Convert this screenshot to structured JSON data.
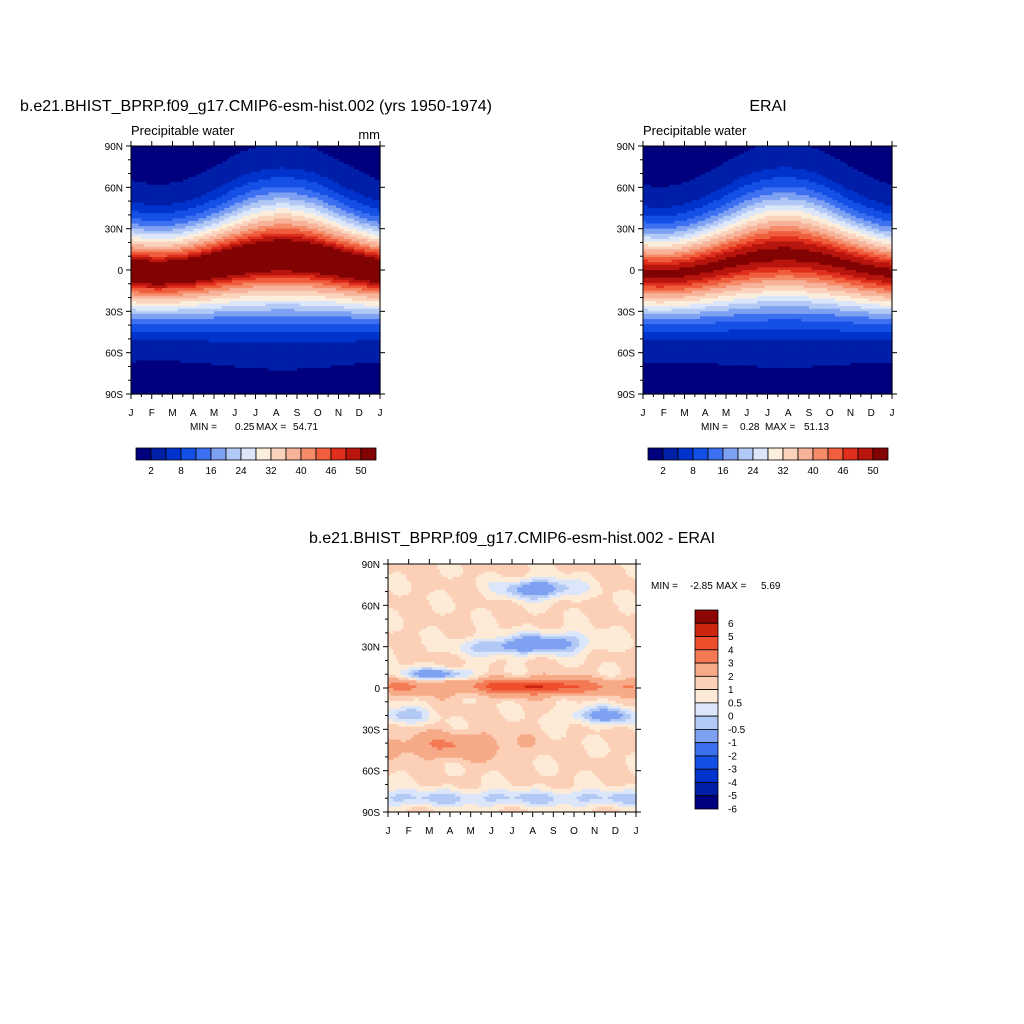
{
  "colors": {
    "pw_scale": [
      "#00007f",
      "#001fa8",
      "#0033cc",
      "#1450e6",
      "#3c70f0",
      "#7ea1f2",
      "#b3c9f5",
      "#dbe6fa",
      "#fbeedd",
      "#fbd3bc",
      "#f7b39a",
      "#f58b69",
      "#ef5e3d",
      "#e02f1c",
      "#b8150e",
      "#820303"
    ],
    "diff_scale": [
      "#00007f",
      "#001fa8",
      "#0033cc",
      "#1450e6",
      "#3c70f0",
      "#7ea1f2",
      "#b3c9f5",
      "#dbe6fa",
      "#fdebd7",
      "#fcd0b7",
      "#f7aa87",
      "#f37a55",
      "#ee4e2c",
      "#cc260f",
      "#8c0606"
    ]
  },
  "chart_data": [
    {
      "type": "heatmap",
      "title": "b.e21.BHIST_BPRP.f09_g17.CMIP6-esm-hist.002 (yrs 1950-1974)",
      "subtitle": "Precipitable water",
      "units": "mm",
      "x_ticks": [
        "J",
        "F",
        "M",
        "A",
        "M",
        "J",
        "J",
        "A",
        "S",
        "O",
        "N",
        "D",
        "J"
      ],
      "y_ticks": [
        "90N",
        "60N",
        "30N",
        "0",
        "30S",
        "60S",
        "90S"
      ],
      "min_label": "MIN =",
      "min": "0.25",
      "max_label": "MAX =",
      "max": "54.71",
      "peak_month": 7.3,
      "peak_lat": 6,
      "colorbar_labels": [
        "2",
        "8",
        "16",
        "24",
        "32",
        "40",
        "46",
        "50"
      ]
    },
    {
      "type": "heatmap",
      "title": "ERAI",
      "subtitle": "Precipitable water",
      "units": "",
      "x_ticks": [
        "J",
        "F",
        "M",
        "A",
        "M",
        "J",
        "J",
        "A",
        "S",
        "O",
        "N",
        "D",
        "J"
      ],
      "y_ticks": [
        "90N",
        "60N",
        "30N",
        "0",
        "30S",
        "60S",
        "90S"
      ],
      "min_label": "MIN =",
      "min": "0.28",
      "max_label": "MAX =",
      "max": "51.13",
      "peak_month": 6.8,
      "peak_lat": 7,
      "colorbar_labels": [
        "2",
        "8",
        "16",
        "24",
        "32",
        "40",
        "46",
        "50"
      ]
    },
    {
      "type": "heatmap",
      "title": "b.e21.BHIST_BPRP.f09_g17.CMIP6-esm-hist.002 - ERAI",
      "subtitle": "",
      "units": "",
      "x_ticks": [
        "J",
        "F",
        "M",
        "A",
        "M",
        "J",
        "J",
        "A",
        "S",
        "O",
        "N",
        "D",
        "J"
      ],
      "y_ticks": [
        "90N",
        "60N",
        "30N",
        "0",
        "30S",
        "60S",
        "90S"
      ],
      "min_label": "MIN =",
      "min": "-2.85",
      "max_label": "MAX =",
      "max": "5.69",
      "colorbar_labels": [
        "6",
        "5",
        "4",
        "3",
        "2",
        "1",
        "0.5",
        "0",
        "-0.5",
        "-1",
        "-2",
        "-3",
        "-4",
        "-5",
        "-6"
      ]
    }
  ]
}
